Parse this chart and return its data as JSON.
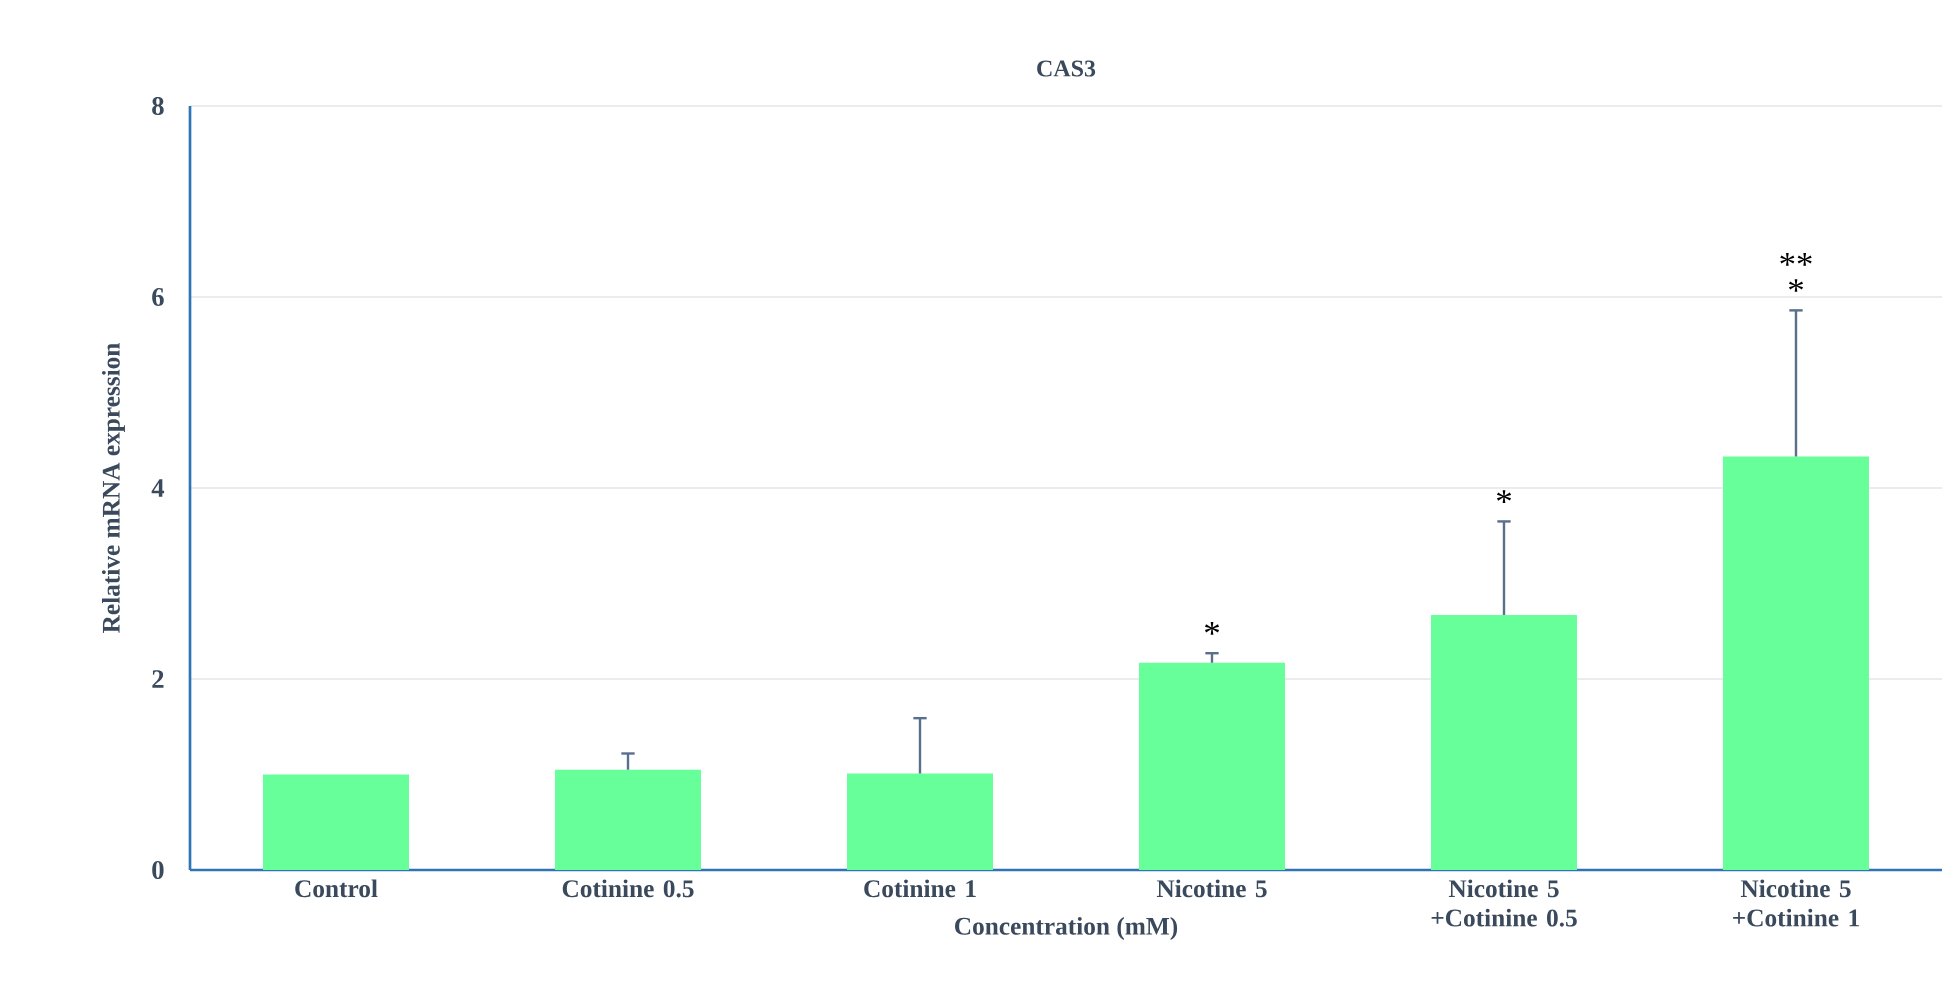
{
  "chart_data": {
    "type": "bar",
    "title": "CAS3",
    "xlabel": "Concentration (mM)",
    "ylabel": "Relative mRNA expression",
    "categories": [
      "Control",
      "Cotinine 0.5",
      "Cotinine 1",
      "Nicotine 5",
      "Nicotine 5 +Cotinine 0.5",
      "Nicotine 5 +Cotinine 1"
    ],
    "values": [
      1.0,
      1.05,
      1.01,
      2.17,
      2.67,
      4.33
    ],
    "errors": [
      null,
      [
        1.05,
        1.22
      ],
      [
        1.01,
        1.59
      ],
      [
        2.17,
        2.27
      ],
      [
        2.67,
        3.65
      ],
      [
        4.33,
        5.86
      ]
    ],
    "color": "#66ff99",
    "ylim": [
      0,
      8
    ],
    "yticks": [
      0,
      2,
      4,
      6,
      8
    ],
    "grid": "y",
    "annotations": [
      "*",
      "*",
      "*",
      "**"
    ]
  }
}
